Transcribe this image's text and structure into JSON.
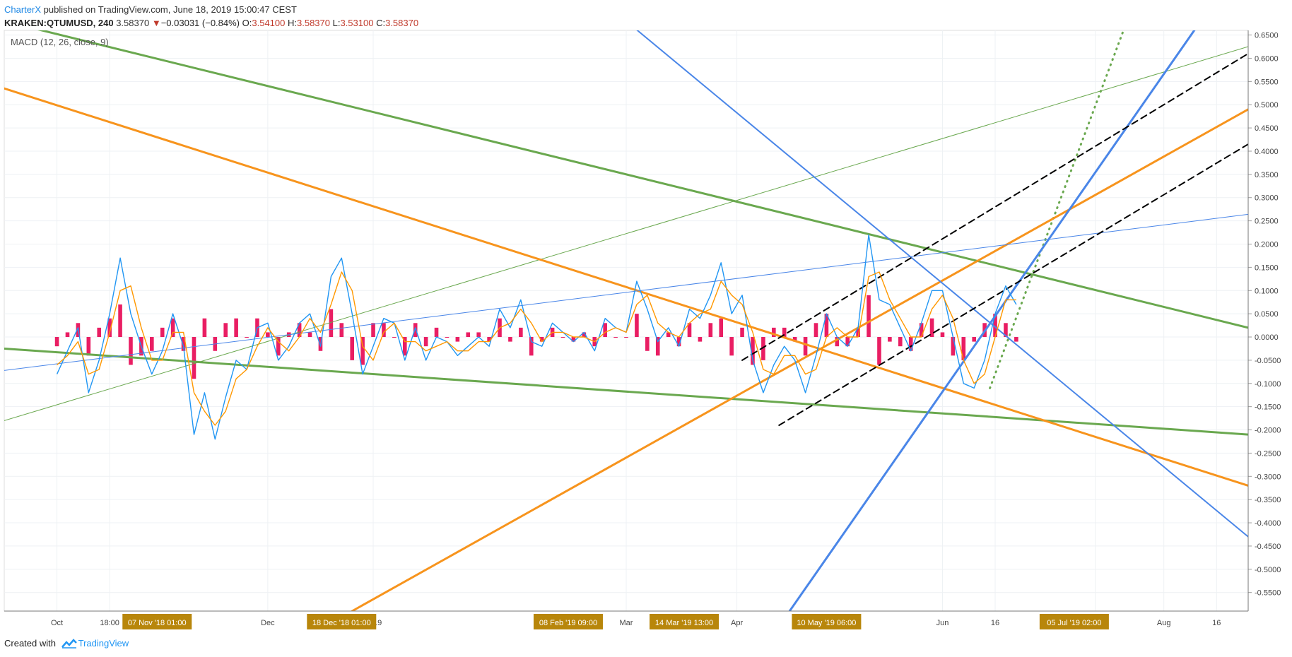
{
  "header": {
    "author": "CharterX",
    "published_text": "published on TradingView.com, June 18, 2019 15:00:47 CEST",
    "symbol": "KRAKEN:QTUMUSD, 240",
    "last": "3.58370",
    "change_arrow": "▼",
    "change": "−0.03031 (−0.84%)",
    "o_label": "O:",
    "o_value": "3.54100",
    "h_label": "H:",
    "h_value": "3.58370",
    "l_label": "L:",
    "l_value": "3.53100",
    "c_label": "C:",
    "c_value": "3.58370"
  },
  "indicator_label": "MACD (12, 26, close, 9)",
  "footer": {
    "created_with": "Created with",
    "brand": "TradingView"
  },
  "colors": {
    "macd_line": "#2196f3",
    "signal_line": "#ff9800",
    "histogram": "#e91e63",
    "trend_green": "#6aa84f",
    "trend_orange": "#f7941d",
    "trend_blue": "#4a86e8",
    "dashed_channel": "#000000",
    "axis_highlight_bg": "#b8860b",
    "negative": "#c0392b",
    "brand": "#2196f3"
  },
  "chart_data": {
    "type": "line",
    "title": "MACD (12, 26, close, 9)",
    "y_axis": {
      "ylim": [
        -0.59,
        0.66
      ],
      "ticks": [
        "0.6500",
        "0.6000",
        "0.5500",
        "0.5000",
        "0.4500",
        "0.4000",
        "0.3500",
        "0.3000",
        "0.2500",
        "0.2000",
        "0.1500",
        "0.1000",
        "0.0500",
        "0.0000",
        "-0.0500",
        "-0.1000",
        "-0.1500",
        "-0.2000",
        "-0.2500",
        "-0.3000",
        "-0.3500",
        "-0.4000",
        "-0.4500",
        "-0.5000",
        "-0.5500"
      ]
    },
    "x_axis": {
      "range_days": [
        -6,
        230
      ],
      "ticks": [
        {
          "label": "Oct",
          "day": 4
        },
        {
          "label": "18:00",
          "day": 14
        },
        {
          "label": "Dec",
          "day": 44
        },
        {
          "label": "2019",
          "day": 64
        },
        {
          "label": "Mar",
          "day": 112
        },
        {
          "label": "Apr",
          "day": 133
        },
        {
          "label": "Jun",
          "day": 172
        },
        {
          "label": "16",
          "day": 182
        },
        {
          "label": "16",
          "day": 201
        },
        {
          "label": "Aug",
          "day": 214
        },
        {
          "label": "16",
          "day": 224
        }
      ],
      "highlighted": [
        {
          "label": "07 Nov '18   01:00",
          "day": 23
        },
        {
          "label": "18 Dec '18   01:00",
          "day": 58
        },
        {
          "label": "08 Feb '19   09:00",
          "day": 101
        },
        {
          "label": "14 Mar '19   13:00",
          "day": 123
        },
        {
          "label": "10 May '19   06:00",
          "day": 150
        },
        {
          "label": "05 Jul '19   02:00",
          "day": 197
        }
      ]
    },
    "series": [
      {
        "name": "MACD",
        "points": [
          [
            4,
            -0.08
          ],
          [
            6,
            -0.03
          ],
          [
            8,
            0.02
          ],
          [
            10,
            -0.12
          ],
          [
            12,
            -0.05
          ],
          [
            14,
            0.05
          ],
          [
            16,
            0.17
          ],
          [
            18,
            0.05
          ],
          [
            20,
            -0.02
          ],
          [
            22,
            -0.08
          ],
          [
            24,
            -0.03
          ],
          [
            26,
            0.05
          ],
          [
            28,
            -0.02
          ],
          [
            30,
            -0.21
          ],
          [
            32,
            -0.12
          ],
          [
            34,
            -0.22
          ],
          [
            36,
            -0.13
          ],
          [
            38,
            -0.05
          ],
          [
            40,
            -0.07
          ],
          [
            42,
            0.02
          ],
          [
            44,
            0.03
          ],
          [
            46,
            -0.05
          ],
          [
            48,
            -0.02
          ],
          [
            50,
            0.03
          ],
          [
            52,
            0.05
          ],
          [
            54,
            -0.02
          ],
          [
            56,
            0.13
          ],
          [
            58,
            0.17
          ],
          [
            60,
            0.05
          ],
          [
            62,
            -0.08
          ],
          [
            64,
            -0.02
          ],
          [
            66,
            0.04
          ],
          [
            68,
            0.03
          ],
          [
            70,
            -0.05
          ],
          [
            72,
            0.02
          ],
          [
            74,
            -0.05
          ],
          [
            76,
            0.0
          ],
          [
            78,
            -0.01
          ],
          [
            80,
            -0.04
          ],
          [
            82,
            -0.02
          ],
          [
            84,
            0.0
          ],
          [
            86,
            -0.02
          ],
          [
            88,
            0.06
          ],
          [
            90,
            0.02
          ],
          [
            92,
            0.08
          ],
          [
            94,
            -0.01
          ],
          [
            96,
            -0.02
          ],
          [
            98,
            0.03
          ],
          [
            100,
            0.01
          ],
          [
            102,
            -0.01
          ],
          [
            104,
            0.01
          ],
          [
            106,
            -0.03
          ],
          [
            108,
            0.04
          ],
          [
            110,
            0.02
          ],
          [
            112,
            0.01
          ],
          [
            114,
            0.12
          ],
          [
            116,
            0.06
          ],
          [
            118,
            -0.01
          ],
          [
            120,
            0.02
          ],
          [
            122,
            -0.02
          ],
          [
            124,
            0.06
          ],
          [
            126,
            0.04
          ],
          [
            128,
            0.09
          ],
          [
            130,
            0.16
          ],
          [
            132,
            0.05
          ],
          [
            134,
            0.09
          ],
          [
            136,
            -0.05
          ],
          [
            138,
            -0.12
          ],
          [
            140,
            -0.06
          ],
          [
            142,
            -0.02
          ],
          [
            144,
            -0.05
          ],
          [
            146,
            -0.12
          ],
          [
            148,
            -0.04
          ],
          [
            150,
            0.05
          ],
          [
            152,
            0.0
          ],
          [
            154,
            -0.02
          ],
          [
            156,
            0.02
          ],
          [
            158,
            0.22
          ],
          [
            160,
            0.08
          ],
          [
            162,
            0.07
          ],
          [
            164,
            0.02
          ],
          [
            166,
            -0.03
          ],
          [
            168,
            0.03
          ],
          [
            170,
            0.1
          ],
          [
            172,
            0.1
          ],
          [
            174,
            0.0
          ],
          [
            176,
            -0.1
          ],
          [
            178,
            -0.11
          ],
          [
            180,
            -0.05
          ],
          [
            182,
            0.05
          ],
          [
            184,
            0.11
          ],
          [
            186,
            0.07
          ]
        ]
      },
      {
        "name": "Signal",
        "points": [
          [
            4,
            -0.06
          ],
          [
            6,
            -0.04
          ],
          [
            8,
            -0.01
          ],
          [
            10,
            -0.08
          ],
          [
            12,
            -0.07
          ],
          [
            14,
            0.01
          ],
          [
            16,
            0.1
          ],
          [
            18,
            0.11
          ],
          [
            20,
            0.02
          ],
          [
            22,
            -0.05
          ],
          [
            24,
            -0.05
          ],
          [
            26,
            0.01
          ],
          [
            28,
            0.01
          ],
          [
            30,
            -0.12
          ],
          [
            32,
            -0.16
          ],
          [
            34,
            -0.19
          ],
          [
            36,
            -0.16
          ],
          [
            38,
            -0.09
          ],
          [
            40,
            -0.07
          ],
          [
            42,
            -0.02
          ],
          [
            44,
            0.02
          ],
          [
            46,
            -0.01
          ],
          [
            48,
            -0.03
          ],
          [
            50,
            0.0
          ],
          [
            52,
            0.04
          ],
          [
            54,
            0.01
          ],
          [
            56,
            0.07
          ],
          [
            58,
            0.14
          ],
          [
            60,
            0.1
          ],
          [
            62,
            -0.02
          ],
          [
            64,
            -0.05
          ],
          [
            66,
            0.01
          ],
          [
            68,
            0.03
          ],
          [
            70,
            -0.01
          ],
          [
            72,
            -0.01
          ],
          [
            74,
            -0.03
          ],
          [
            76,
            -0.02
          ],
          [
            78,
            -0.01
          ],
          [
            80,
            -0.03
          ],
          [
            82,
            -0.03
          ],
          [
            84,
            -0.01
          ],
          [
            86,
            -0.01
          ],
          [
            88,
            0.02
          ],
          [
            90,
            0.03
          ],
          [
            92,
            0.06
          ],
          [
            94,
            0.03
          ],
          [
            96,
            -0.01
          ],
          [
            98,
            0.01
          ],
          [
            100,
            0.01
          ],
          [
            102,
            0.0
          ],
          [
            104,
            0.0
          ],
          [
            106,
            -0.01
          ],
          [
            108,
            0.01
          ],
          [
            110,
            0.02
          ],
          [
            112,
            0.01
          ],
          [
            114,
            0.07
          ],
          [
            116,
            0.09
          ],
          [
            118,
            0.03
          ],
          [
            120,
            0.01
          ],
          [
            122,
            0.0
          ],
          [
            124,
            0.03
          ],
          [
            126,
            0.05
          ],
          [
            128,
            0.06
          ],
          [
            130,
            0.12
          ],
          [
            132,
            0.09
          ],
          [
            134,
            0.07
          ],
          [
            136,
            0.01
          ],
          [
            138,
            -0.07
          ],
          [
            140,
            -0.08
          ],
          [
            142,
            -0.04
          ],
          [
            144,
            -0.04
          ],
          [
            146,
            -0.08
          ],
          [
            148,
            -0.07
          ],
          [
            150,
            0.0
          ],
          [
            152,
            0.02
          ],
          [
            154,
            0.0
          ],
          [
            156,
            0.0
          ],
          [
            158,
            0.13
          ],
          [
            160,
            0.14
          ],
          [
            162,
            0.08
          ],
          [
            164,
            0.04
          ],
          [
            166,
            0.0
          ],
          [
            168,
            0.0
          ],
          [
            170,
            0.06
          ],
          [
            172,
            0.09
          ],
          [
            174,
            0.04
          ],
          [
            176,
            -0.05
          ],
          [
            178,
            -0.1
          ],
          [
            180,
            -0.08
          ],
          [
            182,
            0.0
          ],
          [
            184,
            0.08
          ],
          [
            186,
            0.08
          ]
        ]
      }
    ],
    "histogram": [
      [
        4,
        -0.02
      ],
      [
        6,
        0.01
      ],
      [
        8,
        0.03
      ],
      [
        10,
        -0.04
      ],
      [
        12,
        0.02
      ],
      [
        14,
        0.04
      ],
      [
        16,
        0.07
      ],
      [
        18,
        -0.06
      ],
      [
        20,
        -0.04
      ],
      [
        22,
        -0.03
      ],
      [
        24,
        0.02
      ],
      [
        26,
        0.04
      ],
      [
        28,
        -0.03
      ],
      [
        30,
        -0.09
      ],
      [
        32,
        0.04
      ],
      [
        34,
        -0.03
      ],
      [
        36,
        0.03
      ],
      [
        38,
        0.04
      ],
      [
        40,
        0.0
      ],
      [
        42,
        0.04
      ],
      [
        44,
        0.01
      ],
      [
        46,
        -0.04
      ],
      [
        48,
        0.01
      ],
      [
        50,
        0.03
      ],
      [
        52,
        0.01
      ],
      [
        54,
        -0.03
      ],
      [
        56,
        0.06
      ],
      [
        58,
        0.03
      ],
      [
        60,
        -0.05
      ],
      [
        62,
        -0.06
      ],
      [
        64,
        0.03
      ],
      [
        66,
        0.03
      ],
      [
        68,
        0.0
      ],
      [
        70,
        -0.04
      ],
      [
        72,
        0.03
      ],
      [
        74,
        -0.02
      ],
      [
        76,
        0.02
      ],
      [
        78,
        0.0
      ],
      [
        80,
        -0.01
      ],
      [
        82,
        0.01
      ],
      [
        84,
        0.01
      ],
      [
        86,
        -0.01
      ],
      [
        88,
        0.04
      ],
      [
        90,
        -0.01
      ],
      [
        92,
        0.02
      ],
      [
        94,
        -0.04
      ],
      [
        96,
        -0.01
      ],
      [
        98,
        0.02
      ],
      [
        100,
        0.0
      ],
      [
        102,
        -0.01
      ],
      [
        104,
        0.01
      ],
      [
        106,
        -0.02
      ],
      [
        108,
        0.03
      ],
      [
        110,
        0.0
      ],
      [
        112,
        0.0
      ],
      [
        114,
        0.05
      ],
      [
        116,
        -0.03
      ],
      [
        118,
        -0.04
      ],
      [
        120,
        0.01
      ],
      [
        122,
        -0.02
      ],
      [
        124,
        0.03
      ],
      [
        126,
        -0.01
      ],
      [
        128,
        0.03
      ],
      [
        130,
        0.04
      ],
      [
        132,
        -0.04
      ],
      [
        134,
        0.02
      ],
      [
        136,
        -0.06
      ],
      [
        138,
        -0.05
      ],
      [
        140,
        0.02
      ],
      [
        142,
        0.02
      ],
      [
        144,
        -0.01
      ],
      [
        146,
        -0.04
      ],
      [
        148,
        0.03
      ],
      [
        150,
        0.05
      ],
      [
        152,
        -0.02
      ],
      [
        154,
        -0.02
      ],
      [
        156,
        0.02
      ],
      [
        158,
        0.09
      ],
      [
        160,
        -0.06
      ],
      [
        162,
        -0.01
      ],
      [
        164,
        -0.02
      ],
      [
        166,
        -0.03
      ],
      [
        168,
        0.03
      ],
      [
        170,
        0.04
      ],
      [
        172,
        0.01
      ],
      [
        174,
        -0.04
      ],
      [
        176,
        -0.05
      ],
      [
        178,
        -0.01
      ],
      [
        180,
        0.03
      ],
      [
        182,
        0.05
      ],
      [
        184,
        0.03
      ],
      [
        186,
        -0.01
      ]
    ],
    "trendlines": [
      {
        "color": "green",
        "width": 3,
        "p1": [
          -6,
          0.68
        ],
        "p2": [
          230,
          0.02
        ]
      },
      {
        "color": "green",
        "width": 3,
        "p1": [
          -6,
          -0.025
        ],
        "p2": [
          230,
          -0.21
        ]
      },
      {
        "color": "green",
        "width": 1,
        "p1": [
          -6,
          -0.18
        ],
        "p2": [
          230,
          0.625
        ]
      },
      {
        "color": "green",
        "width": 3,
        "style": "dotted",
        "p1": [
          181,
          -0.11
        ],
        "p2": [
          207,
          0.68
        ]
      },
      {
        "color": "orange",
        "width": 3,
        "p1": [
          -6,
          0.535
        ],
        "p2": [
          230,
          -0.32
        ]
      },
      {
        "color": "orange",
        "width": 3,
        "p1": [
          60,
          -0.59
        ],
        "p2": [
          230,
          0.49
        ]
      },
      {
        "color": "blue",
        "width": 2,
        "p1": [
          112,
          0.68
        ],
        "p2": [
          230,
          -0.43
        ]
      },
      {
        "color": "blue",
        "width": 3,
        "p1": [
          143,
          -0.59
        ],
        "p2": [
          221,
          0.68
        ]
      },
      {
        "color": "blue",
        "width": 1,
        "p1": [
          -6,
          -0.072
        ],
        "p2": [
          230,
          0.264
        ]
      },
      {
        "color": "black",
        "width": 2,
        "style": "dashed",
        "p1": [
          134,
          -0.05
        ],
        "p2": [
          230,
          0.61
        ]
      },
      {
        "color": "black",
        "width": 2,
        "style": "dashed",
        "p1": [
          141,
          -0.19
        ],
        "p2": [
          230,
          0.415
        ]
      }
    ]
  }
}
